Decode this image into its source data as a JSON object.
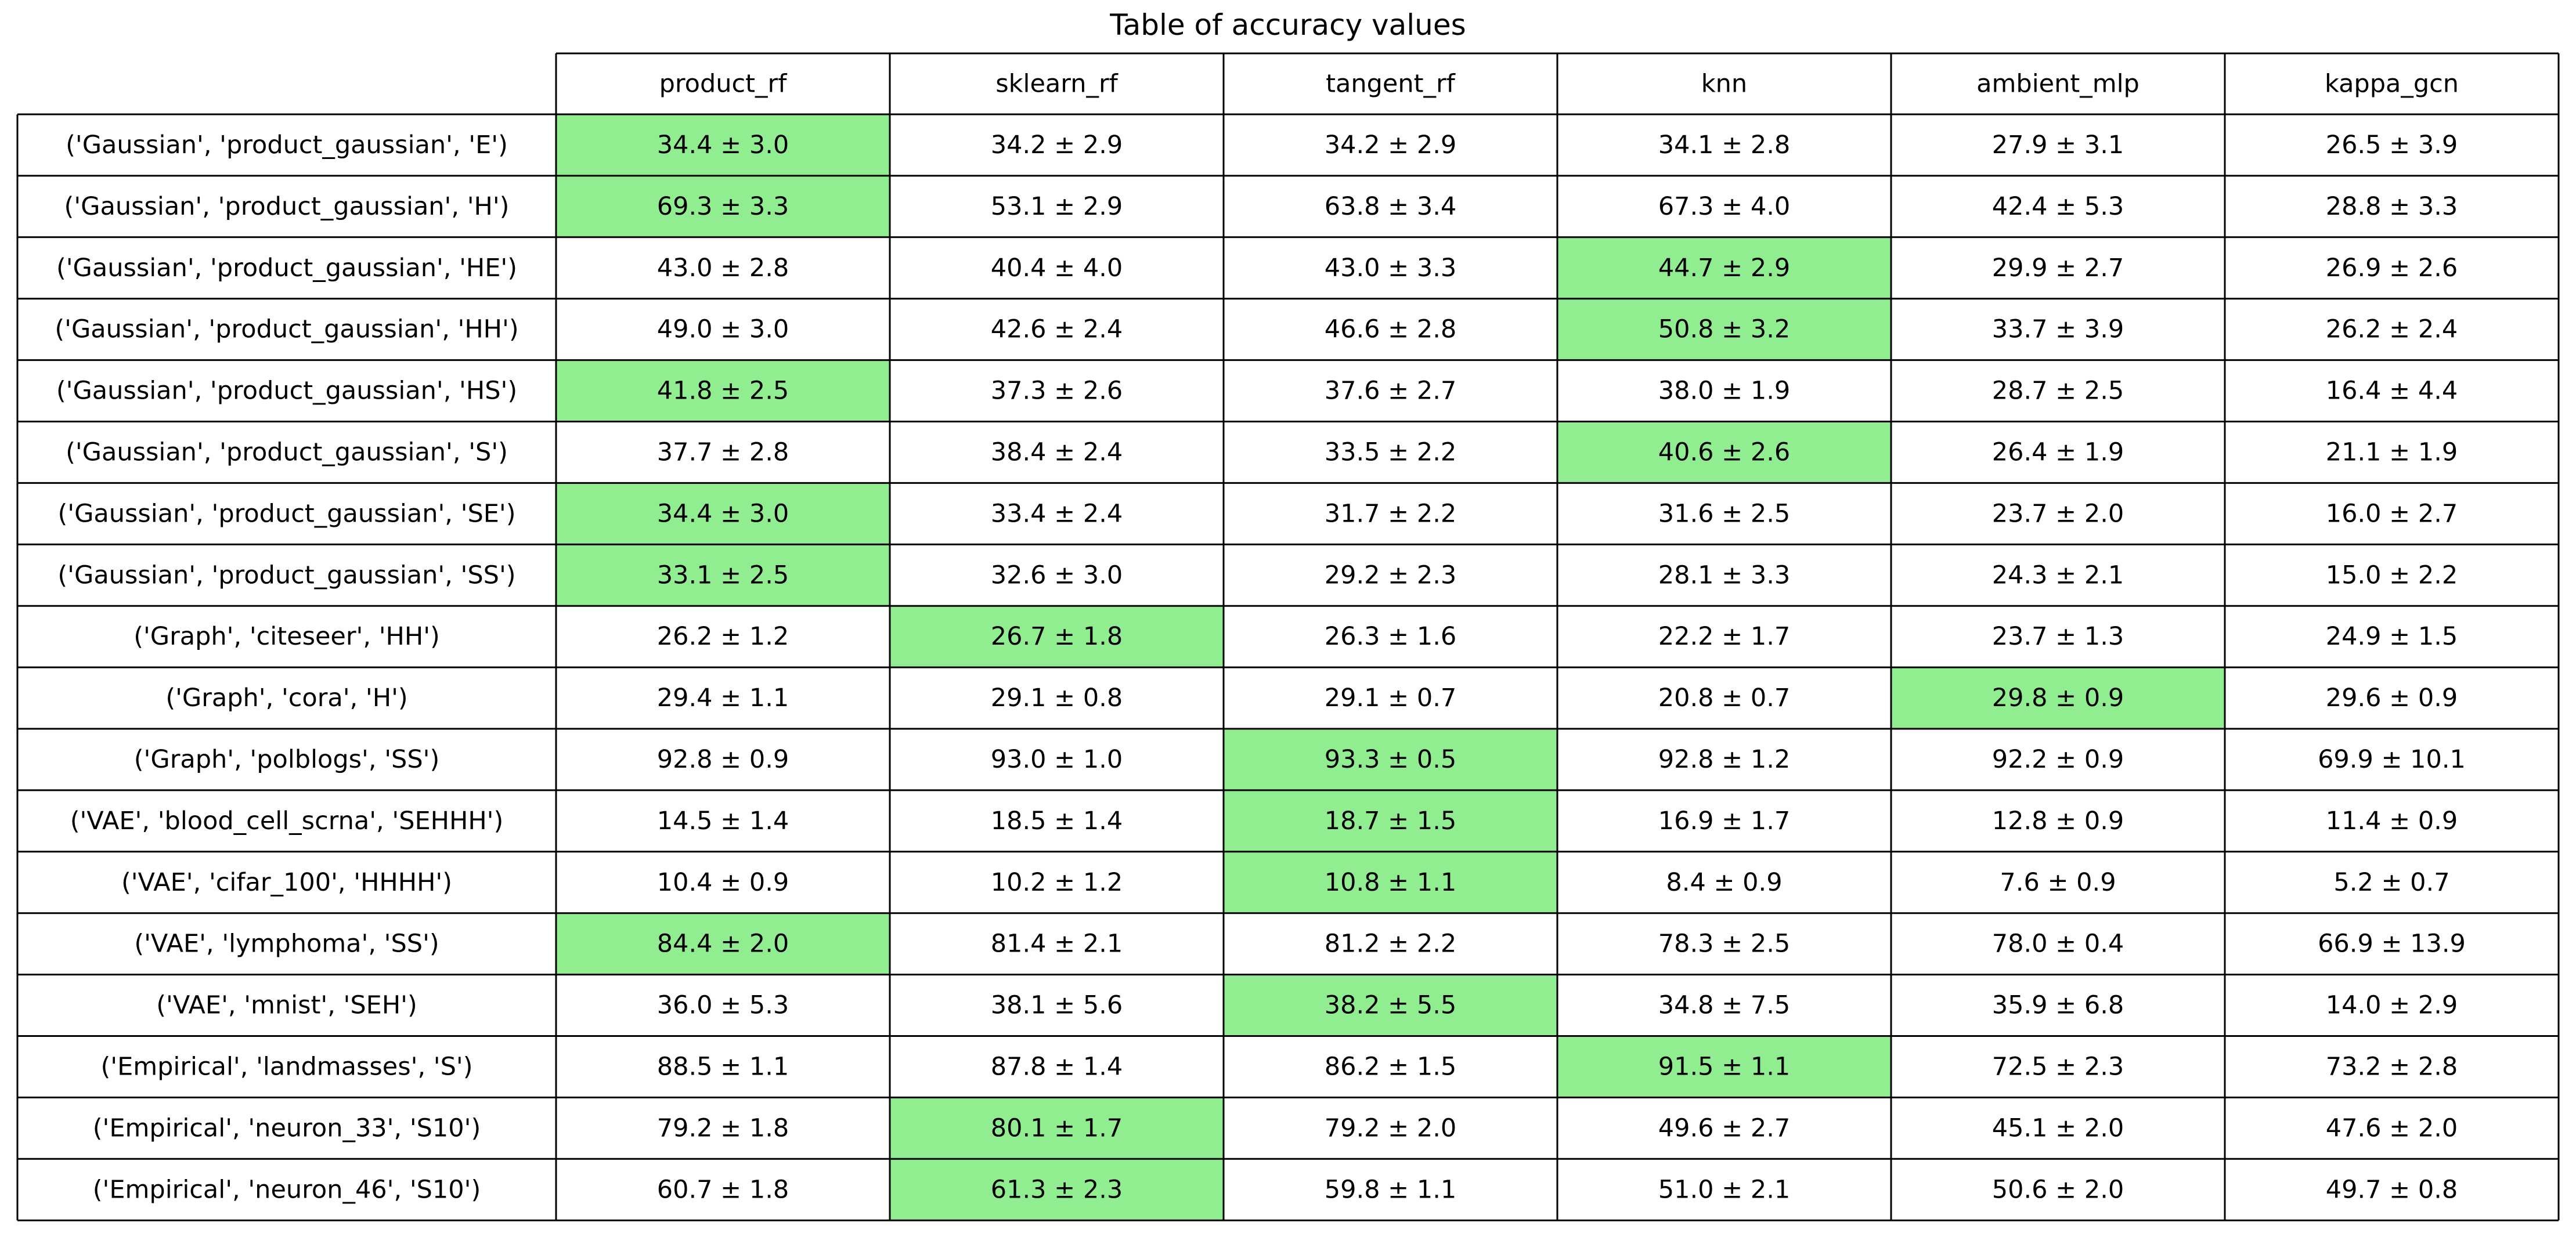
{
  "chart_data": {
    "type": "table",
    "title": "Table of accuracy values",
    "columns": [
      "product_rf",
      "sklearn_rf",
      "tangent_rf",
      "knn",
      "ambient_mlp",
      "kappa_gcn"
    ],
    "rows": [
      {
        "label": "('Gaussian', 'product_gaussian', 'E')",
        "cells": [
          "34.4 ± 3.0",
          "34.2 ± 2.9",
          "34.2 ± 2.9",
          "34.1 ± 2.8",
          "27.9 ± 3.1",
          "26.5 ± 3.9"
        ],
        "best": 0
      },
      {
        "label": "('Gaussian', 'product_gaussian', 'H')",
        "cells": [
          "69.3 ± 3.3",
          "53.1 ± 2.9",
          "63.8 ± 3.4",
          "67.3 ± 4.0",
          "42.4 ± 5.3",
          "28.8 ± 3.3"
        ],
        "best": 0
      },
      {
        "label": "('Gaussian', 'product_gaussian', 'HE')",
        "cells": [
          "43.0 ± 2.8",
          "40.4 ± 4.0",
          "43.0 ± 3.3",
          "44.7 ± 2.9",
          "29.9 ± 2.7",
          "26.9 ± 2.6"
        ],
        "best": 3
      },
      {
        "label": "('Gaussian', 'product_gaussian', 'HH')",
        "cells": [
          "49.0 ± 3.0",
          "42.6 ± 2.4",
          "46.6 ± 2.8",
          "50.8 ± 3.2",
          "33.7 ± 3.9",
          "26.2 ± 2.4"
        ],
        "best": 3
      },
      {
        "label": "('Gaussian', 'product_gaussian', 'HS')",
        "cells": [
          "41.8 ± 2.5",
          "37.3 ± 2.6",
          "37.6 ± 2.7",
          "38.0 ± 1.9",
          "28.7 ± 2.5",
          "16.4 ± 4.4"
        ],
        "best": 0
      },
      {
        "label": "('Gaussian', 'product_gaussian', 'S')",
        "cells": [
          "37.7 ± 2.8",
          "38.4 ± 2.4",
          "33.5 ± 2.2",
          "40.6 ± 2.6",
          "26.4 ± 1.9",
          "21.1 ± 1.9"
        ],
        "best": 3
      },
      {
        "label": "('Gaussian', 'product_gaussian', 'SE')",
        "cells": [
          "34.4 ± 3.0",
          "33.4 ± 2.4",
          "31.7 ± 2.2",
          "31.6 ± 2.5",
          "23.7 ± 2.0",
          "16.0 ± 2.7"
        ],
        "best": 0
      },
      {
        "label": "('Gaussian', 'product_gaussian', 'SS')",
        "cells": [
          "33.1 ± 2.5",
          "32.6 ± 3.0",
          "29.2 ± 2.3",
          "28.1 ± 3.3",
          "24.3 ± 2.1",
          "15.0 ± 2.2"
        ],
        "best": 0
      },
      {
        "label": "('Graph', 'citeseer', 'HH')",
        "cells": [
          "26.2 ± 1.2",
          "26.7 ± 1.8",
          "26.3 ± 1.6",
          "22.2 ± 1.7",
          "23.7 ± 1.3",
          "24.9 ± 1.5"
        ],
        "best": 1
      },
      {
        "label": "('Graph', 'cora', 'H')",
        "cells": [
          "29.4 ± 1.1",
          "29.1 ± 0.8",
          "29.1 ± 0.7",
          "20.8 ± 0.7",
          "29.8 ± 0.9",
          "29.6 ± 0.9"
        ],
        "best": 4
      },
      {
        "label": "('Graph', 'polblogs', 'SS')",
        "cells": [
          "92.8 ± 0.9",
          "93.0 ± 1.0",
          "93.3 ± 0.5",
          "92.8 ± 1.2",
          "92.2 ± 0.9",
          "69.9 ± 10.1"
        ],
        "best": 2
      },
      {
        "label": "('VAE', 'blood_cell_scrna', 'SEHHH')",
        "cells": [
          "14.5 ± 1.4",
          "18.5 ± 1.4",
          "18.7 ± 1.5",
          "16.9 ± 1.7",
          "12.8 ± 0.9",
          "11.4 ± 0.9"
        ],
        "best": 2
      },
      {
        "label": "('VAE', 'cifar_100', 'HHHH')",
        "cells": [
          "10.4 ± 0.9",
          "10.2 ± 1.2",
          "10.8 ± 1.1",
          "8.4 ± 0.9",
          "7.6 ± 0.9",
          "5.2 ± 0.7"
        ],
        "best": 2
      },
      {
        "label": "('VAE', 'lymphoma', 'SS')",
        "cells": [
          "84.4 ± 2.0",
          "81.4 ± 2.1",
          "81.2 ± 2.2",
          "78.3 ± 2.5",
          "78.0 ± 0.4",
          "66.9 ± 13.9"
        ],
        "best": 0
      },
      {
        "label": "('VAE', 'mnist', 'SEH')",
        "cells": [
          "36.0 ± 5.3",
          "38.1 ± 5.6",
          "38.2 ± 5.5",
          "34.8 ± 7.5",
          "35.9 ± 6.8",
          "14.0 ± 2.9"
        ],
        "best": 2
      },
      {
        "label": "('Empirical', 'landmasses', 'S')",
        "cells": [
          "88.5 ± 1.1",
          "87.8 ± 1.4",
          "86.2 ± 1.5",
          "91.5 ± 1.1",
          "72.5 ± 2.3",
          "73.2 ± 2.8"
        ],
        "best": 3
      },
      {
        "label": "('Empirical', 'neuron_33', 'S10')",
        "cells": [
          "79.2 ± 1.8",
          "80.1 ± 1.7",
          "79.2 ± 2.0",
          "49.6 ± 2.7",
          "45.1 ± 2.0",
          "47.6 ± 2.0"
        ],
        "best": 1
      },
      {
        "label": "('Empirical', 'neuron_46', 'S10')",
        "cells": [
          "60.7 ± 1.8",
          "61.3 ± 2.3",
          "59.8 ± 1.1",
          "51.0 ± 2.1",
          "50.6 ± 2.0",
          "49.7 ± 0.8"
        ],
        "best": 1
      }
    ],
    "highlight_color": "#90ee90",
    "grid_color": "#000000",
    "background_color": "#ffffff"
  }
}
